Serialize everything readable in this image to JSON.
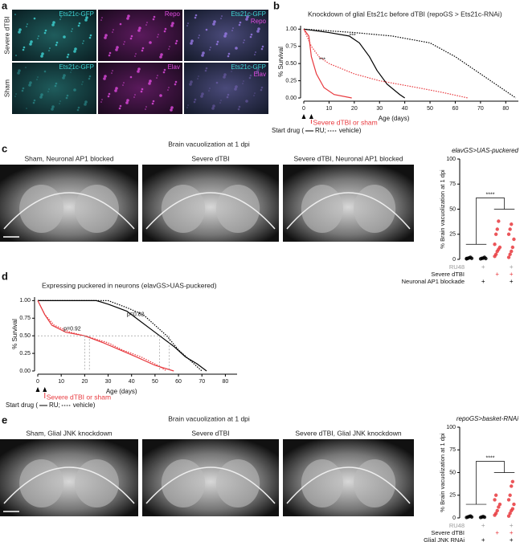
{
  "figure": {
    "panel_labels": [
      "a",
      "b",
      "c",
      "d",
      "e"
    ],
    "a": {
      "row_labels": [
        "Severe dTBI",
        "Sham"
      ],
      "images": [
        [
          [
            "Ets21c-GFP"
          ],
          [
            "Repo"
          ],
          [
            "Ets21c-GFP",
            "Repo"
          ]
        ],
        [
          [
            "Ets21c-GFP"
          ],
          [
            "Elav"
          ],
          [
            "Ets21c-GFP",
            "Elav"
          ]
        ]
      ]
    },
    "c": {
      "title": "Brain vacuolization at 1 dpi",
      "images": [
        "Sham, Neuronal AP1 blocked",
        "Severe dTBI",
        "Severe dTBI,  Neuronal AP1 blocked"
      ]
    },
    "e": {
      "title": "Brain vacuolization at 1 dpi",
      "images": [
        "Sham, Glial JNK knockdown",
        "Severe dTBI",
        "Severe dTBI, Glial JNK knockdown"
      ]
    }
  },
  "chart_data": [
    {
      "type": "survival",
      "title": "Knockdown of glial Ets21c before dTBI (repoGS > Ets21c-RNAi)",
      "y_label": "% Survival",
      "x_label": "Age (days)",
      "xlim": [
        0,
        85
      ],
      "xticks": [
        0,
        10,
        20,
        30,
        40,
        50,
        60,
        70,
        80
      ],
      "ylim": [
        0,
        1.05
      ],
      "yticks": [
        {
          "value": 0,
          "label": "0.00"
        },
        {
          "value": 0.25,
          "label": "0.25"
        },
        {
          "value": 0.5,
          "label": "0.50"
        },
        {
          "value": 0.75,
          "label": "0.75"
        },
        {
          "value": 1,
          "label": "1.00"
        }
      ],
      "series": [
        {
          "color": "#000000",
          "style": "dotted",
          "x": [
            0,
            20,
            35,
            50,
            60,
            68,
            76,
            82,
            84
          ],
          "values": [
            1,
            0.95,
            0.9,
            0.8,
            0.6,
            0.4,
            0.2,
            0.05,
            0
          ]
        },
        {
          "color": "#000000",
          "style": "solid",
          "x": [
            0,
            10,
            18,
            22,
            26,
            29,
            33,
            38,
            40
          ],
          "values": [
            1,
            0.95,
            0.9,
            0.8,
            0.6,
            0.4,
            0.2,
            0.05,
            0
          ]
        },
        {
          "color": "#e8383d",
          "style": "dotted",
          "x": [
            0,
            3,
            6,
            10,
            20,
            30,
            45,
            55,
            65
          ],
          "values": [
            1,
            0.75,
            0.6,
            0.5,
            0.35,
            0.25,
            0.15,
            0.08,
            0
          ]
        },
        {
          "color": "#e8383d",
          "style": "solid",
          "x": [
            0,
            2,
            3,
            5,
            8,
            12,
            19
          ],
          "values": [
            1,
            0.9,
            0.6,
            0.35,
            0.15,
            0.05,
            0
          ]
        }
      ],
      "annotations": [
        "***",
        "***"
      ],
      "injury_label": "Severe dTBI or sham",
      "legend": [
        "Start drug (",
        "RU;",
        "vehicle)"
      ]
    },
    {
      "type": "strip",
      "title": "elavGS>UAS-puckered",
      "y_label": "% Brain vacuolization at 1 dpi",
      "ylim": [
        0,
        100
      ],
      "yticks": [
        0,
        25,
        50,
        75,
        100
      ],
      "groups": [
        {
          "color": "#000000",
          "values": [
            0.5,
            1,
            1.5,
            2,
            1,
            0.8
          ]
        },
        {
          "color": "#000000",
          "values": [
            0.5,
            1,
            1.2,
            2,
            0.8
          ]
        },
        {
          "color": "#e8383d",
          "values": [
            3,
            5,
            8,
            10,
            12,
            15,
            25,
            30,
            38
          ]
        },
        {
          "color": "#e8383d",
          "values": [
            2,
            5,
            8,
            12,
            20,
            25,
            30,
            35
          ]
        }
      ],
      "significance": "****",
      "conditions": [
        {
          "label": "RU48",
          "marks": [
            null,
            "+",
            null,
            "+"
          ]
        },
        {
          "label": "Severe dTBI",
          "marks": [
            null,
            null,
            "+",
            "+"
          ]
        },
        {
          "label": "Neuronal AP1 blockade",
          "marks": [
            null,
            "+",
            null,
            "+"
          ]
        }
      ]
    },
    {
      "type": "survival",
      "title": "Expressing puckered in neurons (elavGS>UAS-puckered)",
      "y_label": "% Survival",
      "x_label": "Age (days)",
      "xlim": [
        0,
        85
      ],
      "xticks": [
        0,
        10,
        20,
        30,
        40,
        50,
        60,
        70,
        80
      ],
      "ylim": [
        0,
        1.05
      ],
      "yticks": [
        {
          "value": 0,
          "label": "0.00"
        },
        {
          "value": 0.25,
          "label": "0.25"
        },
        {
          "value": 0.5,
          "label": "0.50"
        },
        {
          "value": 0.75,
          "label": "0.75"
        },
        {
          "value": 1,
          "label": "1.00"
        }
      ],
      "series": [
        {
          "color": "#000000",
          "style": "solid",
          "x": [
            0,
            25,
            30,
            38,
            42,
            48,
            52,
            58,
            63,
            68,
            72
          ],
          "values": [
            1,
            1,
            0.95,
            0.85,
            0.75,
            0.6,
            0.5,
            0.35,
            0.2,
            0.1,
            0
          ]
        },
        {
          "color": "#000000",
          "style": "dotted",
          "x": [
            0,
            30,
            38,
            45,
            50,
            55,
            60,
            65,
            70
          ],
          "values": [
            1,
            1,
            0.9,
            0.8,
            0.65,
            0.5,
            0.3,
            0.15,
            0
          ]
        },
        {
          "color": "#e8383d",
          "style": "solid",
          "x": [
            0,
            3,
            6,
            12,
            20,
            28,
            35,
            42,
            50,
            58
          ],
          "values": [
            1,
            0.8,
            0.65,
            0.55,
            0.5,
            0.4,
            0.3,
            0.2,
            0.08,
            0
          ]
        },
        {
          "color": "#e8383d",
          "style": "dotted",
          "x": [
            0,
            3,
            7,
            14,
            22,
            30,
            36,
            44,
            50,
            55
          ],
          "values": [
            1,
            0.8,
            0.65,
            0.55,
            0.48,
            0.4,
            0.3,
            0.2,
            0.1,
            0
          ]
        }
      ],
      "annotations": [
        "p=0.92",
        "p=0.82"
      ],
      "injury_label": "Severe dTBI or sham",
      "legend": [
        "Start drug (",
        "RU;",
        "vehicle)"
      ]
    },
    {
      "type": "strip",
      "title": "repoGS>basket-RNAi",
      "y_label": "% Brain vacuolization at 1 dpi",
      "ylim": [
        0,
        100
      ],
      "yticks": [
        0,
        25,
        50,
        75,
        100
      ],
      "groups": [
        {
          "color": "#000000",
          "values": [
            0.5,
            1,
            1.5,
            2,
            1
          ]
        },
        {
          "color": "#000000",
          "values": [
            0.5,
            1,
            1.5,
            0.8
          ]
        },
        {
          "color": "#e8383d",
          "values": [
            3,
            5,
            8,
            12,
            15,
            20,
            25
          ]
        },
        {
          "color": "#e8383d",
          "values": [
            2,
            5,
            8,
            10,
            15,
            20,
            25,
            35,
            40
          ]
        }
      ],
      "significance": "****",
      "conditions": [
        {
          "label": "RU48",
          "marks": [
            null,
            "+",
            null,
            "+"
          ]
        },
        {
          "label": "Severe dTBI",
          "marks": [
            null,
            null,
            "+",
            "+"
          ]
        },
        {
          "label": "Glial JNK RNAi",
          "marks": [
            null,
            "+",
            null,
            "+"
          ]
        }
      ]
    }
  ]
}
